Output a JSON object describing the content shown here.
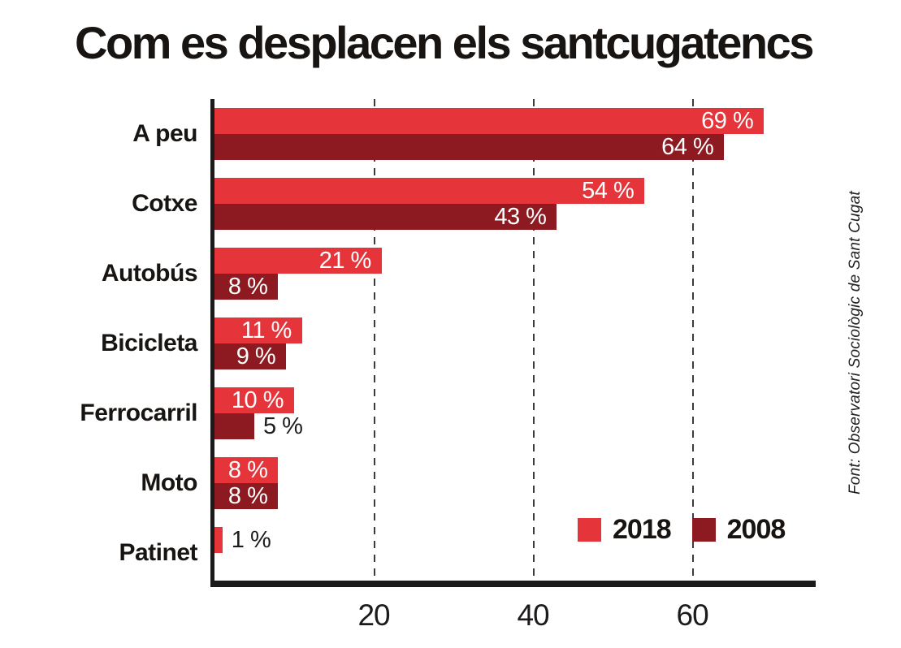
{
  "chart_data": {
    "type": "bar",
    "orientation": "horizontal",
    "title": "Com es desplacen els santcugatencs",
    "categories": [
      "A peu",
      "Cotxe",
      "Autobús",
      "Bicicleta",
      "Ferrocarril",
      "Moto",
      "Patinet"
    ],
    "series": [
      {
        "name": "2018",
        "color": "#e5343a",
        "values": [
          69,
          54,
          21,
          11,
          10,
          8,
          1
        ]
      },
      {
        "name": "2008",
        "color": "#8c1a20",
        "values": [
          64,
          43,
          8,
          9,
          5,
          8,
          null
        ]
      }
    ],
    "value_suffix": " %",
    "x_ticks": [
      20,
      40,
      60
    ],
    "xlim": [
      0,
      75.5
    ],
    "grid": "dashed-vertical-gridlines",
    "legend_position": "bottom-right",
    "label_inside_color": "#ffffff",
    "label_outside_color": "#1d1d1b",
    "axis_color": "#1d1b1a",
    "grid_color": "#3c3c3b",
    "source": "Font: Observatori Sociològic de Sant Cugat"
  }
}
